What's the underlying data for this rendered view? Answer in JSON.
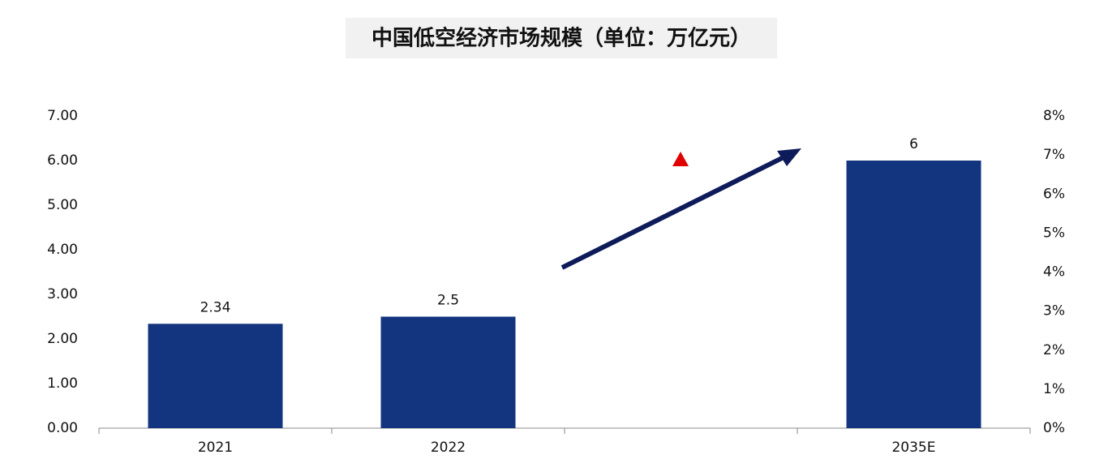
{
  "chart_data": {
    "type": "bar",
    "title": "中国低空经济市场规模（单位：万亿元）",
    "categories": [
      "2021",
      "2022",
      null,
      "2035E"
    ],
    "values": [
      2.34,
      2.5,
      null,
      6
    ],
    "color": "#13347f",
    "ylim": [
      0,
      7
    ],
    "yticks": [
      {
        "value": 0,
        "label": "0.00"
      },
      {
        "value": 1,
        "label": "1.00"
      },
      {
        "value": 2,
        "label": "2.00"
      },
      {
        "value": 3,
        "label": "3.00"
      },
      {
        "value": 4,
        "label": "4.00"
      },
      {
        "value": 5,
        "label": "5.00"
      },
      {
        "value": 6,
        "label": "6.00"
      },
      {
        "value": 7,
        "label": "7.00"
      }
    ],
    "y2lim": [
      0,
      8
    ],
    "y2ticks": [
      {
        "value": 0,
        "label": "0%"
      },
      {
        "value": 1,
        "label": "1%"
      },
      {
        "value": 2,
        "label": "2%"
      },
      {
        "value": 3,
        "label": "3%"
      },
      {
        "value": 4,
        "label": "4%"
      },
      {
        "value": 5,
        "label": "5%"
      },
      {
        "value": 6,
        "label": "6%"
      },
      {
        "value": 7,
        "label": "7%"
      },
      {
        "value": 8,
        "label": "8%"
      }
    ],
    "grid": false
  }
}
